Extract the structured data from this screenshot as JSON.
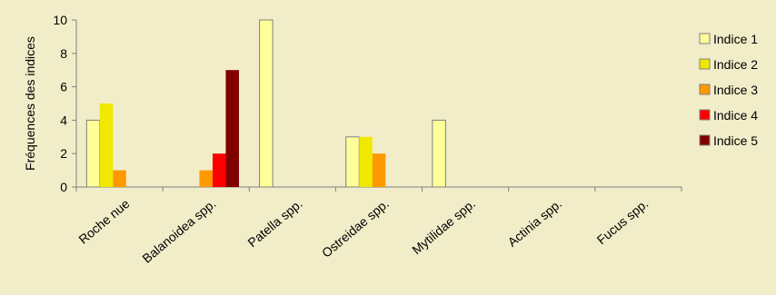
{
  "chart_data": {
    "type": "bar",
    "title": "",
    "xlabel": "",
    "ylabel": "Fréquences des indices",
    "ylim": [
      0,
      10
    ],
    "yticks": [
      0,
      2,
      4,
      6,
      8,
      10
    ],
    "grid": false,
    "legend_position": "right",
    "categories": [
      "Roche nue",
      "Balanoidea spp.",
      "Patella spp.",
      "Ostreidae spp.",
      "Mytilidae spp.",
      "Actinia spp.",
      "Fucus spp."
    ],
    "series": [
      {
        "name": "Indice 1",
        "color": "#ffff99",
        "values": [
          4,
          0,
          10,
          3,
          4,
          0,
          0
        ]
      },
      {
        "name": "Indice 2",
        "color": "#f0e800",
        "values": [
          5,
          0,
          0,
          3,
          0,
          0,
          0
        ]
      },
      {
        "name": "Indice 3",
        "color": "#ff9900",
        "values": [
          1,
          1,
          0,
          2,
          0,
          0,
          0
        ]
      },
      {
        "name": "Indice 4",
        "color": "#ff0000",
        "values": [
          0,
          2,
          0,
          0,
          0,
          0,
          0
        ]
      },
      {
        "name": "Indice 5",
        "color": "#800000",
        "values": [
          0,
          7,
          0,
          0,
          0,
          0,
          0
        ]
      }
    ]
  }
}
